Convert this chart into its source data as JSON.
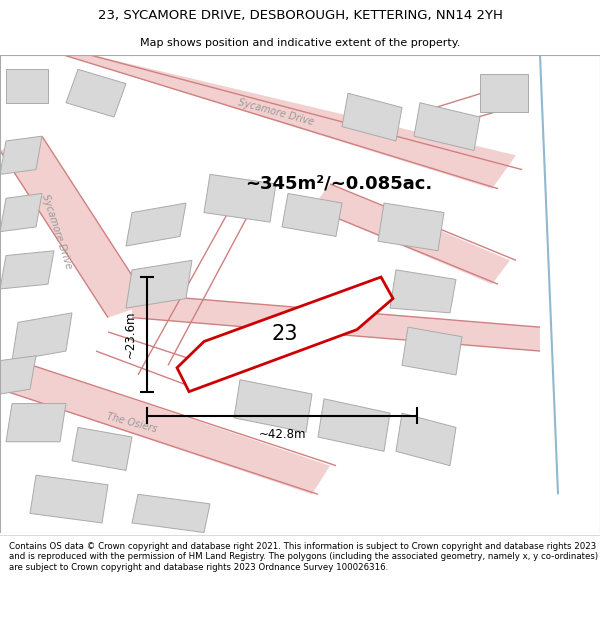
{
  "title": "23, SYCAMORE DRIVE, DESBOROUGH, KETTERING, NN14 2YH",
  "subtitle": "Map shows position and indicative extent of the property.",
  "footer": "Contains OS data © Crown copyright and database right 2021. This information is subject to Crown copyright and database rights 2023 and is reproduced with the permission of HM Land Registry. The polygons (including the associated geometry, namely x, y co-ordinates) are subject to Crown copyright and database rights 2023 Ordnance Survey 100026316.",
  "area_text": "~345m²/~0.085ac.",
  "width_label": "~42.8m",
  "height_label": "~23.6m",
  "plot_number": "23",
  "map_bg": "#f8f8f8",
  "road_fill": "#f2d0d0",
  "road_edge": "#d08080",
  "building_fill": "#d8d8d8",
  "building_edge": "#aaaaaa",
  "highlight_color": "#cc0000",
  "highlight_fill": "#ffffff",
  "blue_line": "#90b8d0",
  "title_fontsize": 9.5,
  "subtitle_fontsize": 8,
  "area_fontsize": 13,
  "dim_fontsize": 8.5,
  "footer_fontsize": 6.2,
  "plot_label_fontsize": 15,
  "road_label_fontsize": 7
}
